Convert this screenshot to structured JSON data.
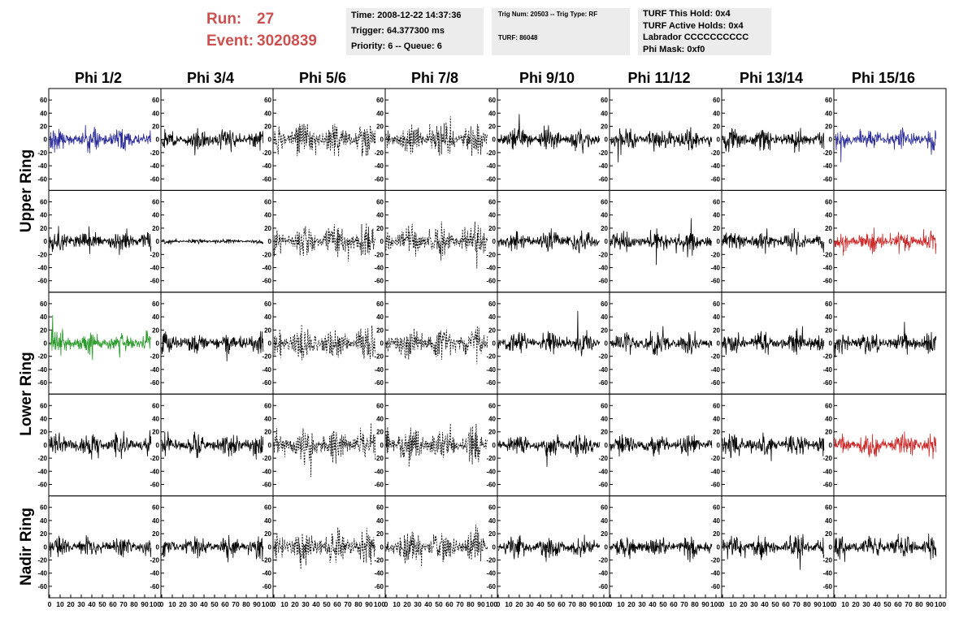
{
  "header": {
    "run_label": "Run:",
    "run_value": "27",
    "event_label": "Event:",
    "event_value": "3020839",
    "info_box_1": [
      "Time: 2008-12-22 14:37:36",
      "Trigger: 64.377300 ms",
      "Priority: 6 -- Queue: 6"
    ],
    "info_box_2": [
      "Trig Num: 20503 -- Trig Type: RF",
      "TURF: 86048"
    ],
    "info_box_3": [
      "TURF This Hold: 0x4",
      "TURF Active Holds: 0x4",
      "Labrador CCCCCCCCCC",
      "Phi Mask: 0xf0"
    ]
  },
  "columns": [
    "Phi 1/2",
    "Phi 3/4",
    "Phi 5/6",
    "Phi 7/8",
    "Phi 9/10",
    "Phi 11/12",
    "Phi 13/14",
    "Phi 15/16"
  ],
  "ring_labels": [
    "Upper Ring",
    "Lower Ring",
    "Nadir Ring"
  ],
  "y_ticks": [
    "60",
    "40",
    "20",
    "0",
    "-20",
    "-40",
    "-60"
  ],
  "x_ticks": [
    "0",
    "10",
    "20",
    "30",
    "40",
    "50",
    "60",
    "70",
    "80",
    "90",
    "100"
  ],
  "colors": {
    "trace": "#000000",
    "blue": "#2b2b9a",
    "red": "#cc2a2a",
    "green": "#2a9a2a",
    "run_text": "#cd5050",
    "info_bg": "#ececec"
  },
  "chart_data": {
    "type": "line",
    "xlim": [
      0,
      100
    ],
    "ylim": [
      -70,
      70
    ],
    "rows": 5,
    "cols": 8,
    "highlighted_panels": [
      {
        "row": 0,
        "col": 0,
        "color": "blue"
      },
      {
        "row": 0,
        "col": 7,
        "color": "blue"
      },
      {
        "row": 1,
        "col": 7,
        "color": "red"
      },
      {
        "row": 2,
        "col": 0,
        "color": "green"
      },
      {
        "row": 3,
        "col": 7,
        "color": "red"
      }
    ],
    "dashed_columns": [
      2,
      3
    ],
    "flat_panels": [
      {
        "row": 1,
        "col": 1
      }
    ]
  }
}
